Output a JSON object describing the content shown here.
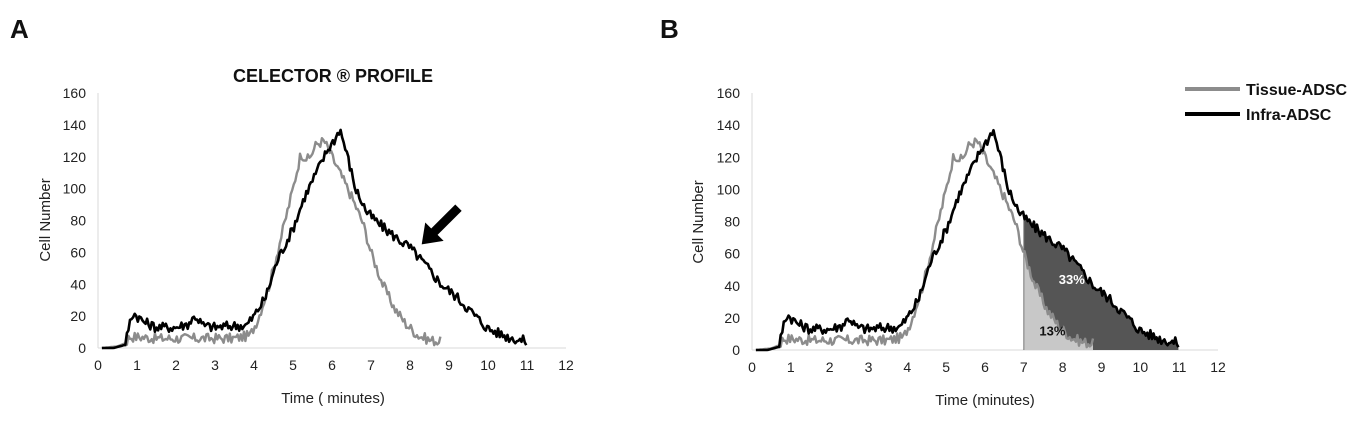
{
  "chart_data": [
    {
      "panel": "A",
      "type": "line",
      "title": "CELECTOR ® PROFILE",
      "xlabel": "Time ( minutes)",
      "ylabel": "Cell Number",
      "xlim": [
        0,
        12
      ],
      "ylim": [
        0,
        160
      ],
      "xticks": [
        "0",
        "1",
        "2",
        "3",
        "4",
        "5",
        "6",
        "7",
        "8",
        "9",
        "10",
        "11",
        "12"
      ],
      "yticks": [
        "0",
        "20",
        "40",
        "60",
        "80",
        "100",
        "120",
        "140",
        "160"
      ],
      "annotations": [
        {
          "type": "arrow",
          "x": 8.3,
          "y": 65
        }
      ],
      "series": [
        {
          "name": "Tissue-ADSC",
          "color": "#8c8c8c",
          "x": [
            0.1,
            0.5,
            0.7,
            0.8,
            1.0,
            1.5,
            2.0,
            2.5,
            3.0,
            3.5,
            3.9,
            4.1,
            4.4,
            4.7,
            5.0,
            5.2,
            5.4,
            5.6,
            5.8,
            6.0,
            6.2,
            6.5,
            6.8,
            7.0,
            7.3,
            7.6,
            7.9,
            8.2,
            8.5,
            8.8
          ],
          "y": [
            0,
            1,
            3,
            7,
            7,
            6,
            6,
            6,
            6,
            6,
            8,
            18,
            40,
            70,
            100,
            122,
            118,
            128,
            130,
            120,
            110,
            95,
            78,
            60,
            40,
            25,
            15,
            8,
            5,
            4
          ]
        },
        {
          "name": "Infra-ADSC",
          "color": "#000000",
          "x": [
            0.1,
            0.4,
            0.7,
            0.8,
            0.9,
            1.2,
            1.5,
            2.0,
            2.3,
            2.5,
            2.7,
            3.0,
            3.5,
            3.8,
            4.0,
            4.3,
            4.6,
            5.0,
            5.3,
            5.6,
            5.9,
            6.1,
            6.2,
            6.4,
            6.6,
            6.9,
            7.2,
            7.6,
            8.0,
            8.4,
            8.8,
            9.2,
            9.6,
            10.0,
            10.5,
            11.0
          ],
          "y": [
            0,
            0,
            2,
            15,
            22,
            16,
            13,
            13,
            15,
            20,
            14,
            13,
            14,
            14,
            20,
            32,
            55,
            75,
            95,
            110,
            125,
            132,
            138,
            120,
            100,
            85,
            78,
            70,
            63,
            52,
            40,
            32,
            22,
            12,
            7,
            4
          ]
        }
      ]
    },
    {
      "panel": "B",
      "type": "area",
      "title": "",
      "xlabel": "Time (minutes)",
      "ylabel": "Cell Number",
      "xlim": [
        0,
        12
      ],
      "ylim": [
        0,
        160
      ],
      "xticks": [
        "0",
        "1",
        "2",
        "3",
        "4",
        "5",
        "6",
        "7",
        "8",
        "9",
        "10",
        "11",
        "12"
      ],
      "yticks": [
        "0",
        "20",
        "40",
        "60",
        "80",
        "100",
        "120",
        "140",
        "160"
      ],
      "legend": {
        "position": "top-right",
        "entries": [
          "Tissue-ADSC",
          "Infra-ADSC"
        ]
      },
      "shaded_from_x": 7,
      "shaded_labels": [
        {
          "text": "33%",
          "series": "Infra-ADSC",
          "x": 7.9,
          "y": 41,
          "color": "#ffffff"
        },
        {
          "text": "13%",
          "series": "Tissue-ADSC",
          "x": 7.4,
          "y": 9,
          "color": "#111111"
        }
      ],
      "series": [
        {
          "name": "Tissue-ADSC",
          "color": "#8c8c8c",
          "fill": "#c8c8c8",
          "x": [
            0.1,
            0.5,
            0.7,
            0.8,
            1.0,
            1.5,
            2.0,
            2.5,
            3.0,
            3.5,
            3.9,
            4.1,
            4.4,
            4.7,
            5.0,
            5.2,
            5.4,
            5.6,
            5.8,
            6.0,
            6.2,
            6.5,
            6.8,
            7.0,
            7.3,
            7.6,
            7.9,
            8.2,
            8.5,
            8.8
          ],
          "y": [
            0,
            1,
            3,
            7,
            7,
            6,
            6,
            6,
            6,
            6,
            8,
            18,
            40,
            70,
            100,
            122,
            118,
            128,
            130,
            120,
            110,
            95,
            78,
            60,
            40,
            25,
            15,
            8,
            5,
            4
          ]
        },
        {
          "name": "Infra-ADSC",
          "color": "#000000",
          "fill": "#555555",
          "x": [
            0.1,
            0.4,
            0.7,
            0.8,
            0.9,
            1.2,
            1.5,
            2.0,
            2.3,
            2.5,
            2.7,
            3.0,
            3.5,
            3.8,
            4.0,
            4.3,
            4.6,
            5.0,
            5.3,
            5.6,
            5.9,
            6.1,
            6.2,
            6.4,
            6.6,
            6.9,
            7.2,
            7.6,
            8.0,
            8.4,
            8.8,
            9.2,
            9.6,
            10.0,
            10.5,
            11.0
          ],
          "y": [
            0,
            0,
            2,
            15,
            22,
            16,
            13,
            13,
            15,
            20,
            14,
            13,
            14,
            14,
            20,
            32,
            55,
            75,
            95,
            110,
            125,
            132,
            138,
            120,
            100,
            85,
            78,
            70,
            63,
            52,
            40,
            32,
            22,
            12,
            7,
            4
          ]
        }
      ]
    }
  ]
}
